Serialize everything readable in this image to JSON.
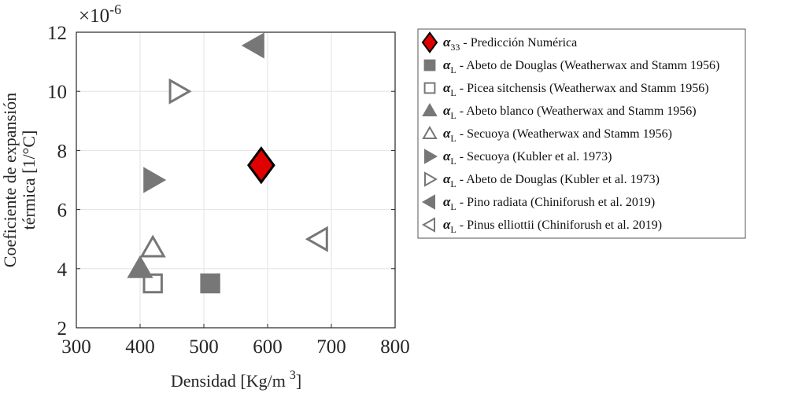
{
  "chart_data": {
    "type": "scatter",
    "xlabel": "Densidad [Kg/m",
    "xlabel_sup": "3",
    "xlabel_end": "]",
    "ylabel_line1": "Coeficiente de expansión",
    "ylabel_line2": "térmica [1/°C]",
    "y_multiplier": "×10",
    "y_multiplier_exp": "-6",
    "xlim": [
      300,
      800
    ],
    "ylim": [
      2,
      12
    ],
    "xticks": [
      300,
      400,
      500,
      600,
      700,
      800
    ],
    "yticks": [
      2,
      4,
      6,
      8,
      10,
      12
    ],
    "grid": true,
    "legend_placement": "outside-right",
    "series": [
      {
        "symbol": "α",
        "sub": "33",
        "name": " - Predicción Numérica",
        "marker": "diamond",
        "fill": "#e00000",
        "stroke": "#000000",
        "x": [
          590
        ],
        "y": [
          7.5
        ]
      },
      {
        "symbol": "α",
        "sub": "L",
        "name": " - Abeto de Douglas (Weatherwax and Stamm 1956)",
        "marker": "square",
        "fill": "#777777",
        "stroke": "#777777",
        "x": [
          510
        ],
        "y": [
          3.5
        ]
      },
      {
        "symbol": "α",
        "sub": "L",
        "name": " - Picea sitchensis (Weatherwax and Stamm 1956)",
        "marker": "square",
        "fill": "none",
        "stroke": "#777777",
        "x": [
          420
        ],
        "y": [
          3.5
        ]
      },
      {
        "symbol": "α",
        "sub": "L",
        "name": " - Abeto blanco (Weatherwax and Stamm 1956)",
        "marker": "triangle-up",
        "fill": "#777777",
        "stroke": "#777777",
        "x": [
          400
        ],
        "y": [
          4.0
        ]
      },
      {
        "symbol": "α",
        "sub": "L",
        "name": " - Secuoya (Weatherwax and Stamm 1956)",
        "marker": "triangle-up",
        "fill": "none",
        "stroke": "#777777",
        "x": [
          420
        ],
        "y": [
          4.7
        ]
      },
      {
        "symbol": "α",
        "sub": "L",
        "name": " - Secuoya (Kubler et al. 1973)",
        "marker": "triangle-right",
        "fill": "#777777",
        "stroke": "#777777",
        "x": [
          420
        ],
        "y": [
          7.0
        ]
      },
      {
        "symbol": "α",
        "sub": "L",
        "name": " - Abeto de Douglas (Kubler et al. 1973)",
        "marker": "triangle-right",
        "fill": "none",
        "stroke": "#777777",
        "x": [
          460
        ],
        "y": [
          10.0
        ]
      },
      {
        "symbol": "α",
        "sub": "L",
        "name": " - Pino radiata (Chiniforush et al. 2019)",
        "marker": "triangle-left",
        "fill": "#777777",
        "stroke": "#777777",
        "x": [
          580
        ],
        "y": [
          11.55
        ]
      },
      {
        "symbol": "α",
        "sub": "L",
        "name": " - Pinus elliottii (Chiniforush et al. 2019)",
        "marker": "triangle-left",
        "fill": "none",
        "stroke": "#777777",
        "x": [
          680
        ],
        "y": [
          5.0
        ]
      }
    ]
  }
}
